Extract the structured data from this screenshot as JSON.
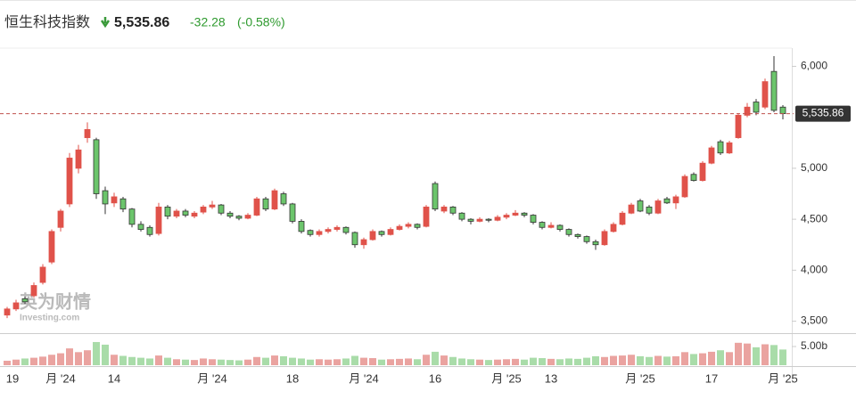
{
  "header": {
    "title": "恒生科技指数",
    "change": -32.28,
    "change_pct": "(-0.58%)"
  },
  "watermark": {
    "cn": "英为财情",
    "en": "Investing.com"
  },
  "chart_data": {
    "type": "candlestick",
    "up_color": "#e0524a",
    "down_color": "#6cc56c",
    "volume_up_color": "#eaa3a0",
    "volume_down_color": "#a9dca9",
    "last_price": {
      "value": 5535.86,
      "label": "5,535.86"
    },
    "last_price_color": "#c0504d",
    "ylim": [
      3400,
      6170
    ],
    "yticks": [
      {
        "value": 3500,
        "label": "3,500"
      },
      {
        "value": 4000,
        "label": "4,000"
      },
      {
        "value": 4500,
        "label": "4,500"
      },
      {
        "value": 5000,
        "label": "5,000"
      },
      {
        "value": 6000,
        "label": "6,000"
      }
    ],
    "volume_lim": [
      0,
      8.1
    ],
    "volume_ticks": [
      {
        "value": 5,
        "label": "5.00b"
      }
    ],
    "grid": false,
    "categories": [
      "19",
      null,
      null,
      null,
      null,
      null,
      "月 '24",
      null,
      null,
      null,
      null,
      null,
      "14",
      null,
      null,
      null,
      null,
      null,
      null,
      null,
      null,
      null,
      null,
      "月 '24",
      null,
      null,
      null,
      null,
      null,
      null,
      null,
      null,
      "18",
      null,
      null,
      null,
      null,
      null,
      null,
      null,
      "月 '24",
      null,
      null,
      null,
      null,
      null,
      null,
      null,
      "16",
      null,
      null,
      null,
      null,
      null,
      null,
      null,
      "月 '25",
      null,
      null,
      null,
      null,
      "13",
      null,
      null,
      null,
      null,
      null,
      null,
      null,
      null,
      null,
      "月 '25",
      null,
      null,
      null,
      null,
      null,
      null,
      null,
      "17",
      null,
      null,
      null,
      null,
      null,
      null,
      null,
      "月 '25"
    ],
    "candles": [
      [
        3560,
        3640,
        3530,
        3620
      ],
      [
        3620,
        3710,
        3600,
        3680
      ],
      [
        3720,
        3740,
        3670,
        3690
      ],
      [
        3750,
        3880,
        3730,
        3850
      ],
      [
        3880,
        4060,
        3860,
        4030
      ],
      [
        4080,
        4400,
        4060,
        4380
      ],
      [
        4420,
        4600,
        4380,
        4580
      ],
      [
        4650,
        5150,
        4620,
        5100
      ],
      [
        5000,
        5230,
        4950,
        5180
      ],
      [
        5300,
        5450,
        5250,
        5380
      ],
      [
        5280,
        5300,
        4700,
        4750
      ],
      [
        4780,
        4820,
        4550,
        4650
      ],
      [
        4660,
        4760,
        4620,
        4720
      ],
      [
        4700,
        4720,
        4570,
        4600
      ],
      [
        4600,
        4610,
        4420,
        4450
      ],
      [
        4450,
        4480,
        4380,
        4400
      ],
      [
        4420,
        4440,
        4330,
        4350
      ],
      [
        4360,
        4660,
        4340,
        4620
      ],
      [
        4620,
        4640,
        4500,
        4530
      ],
      [
        4530,
        4600,
        4510,
        4580
      ],
      [
        4580,
        4600,
        4520,
        4540
      ],
      [
        4530,
        4580,
        4510,
        4560
      ],
      [
        4570,
        4640,
        4550,
        4620
      ],
      [
        4620,
        4680,
        4600,
        4640
      ],
      [
        4640,
        4650,
        4540,
        4560
      ],
      [
        4560,
        4580,
        4510,
        4530
      ],
      [
        4530,
        4540,
        4490,
        4510
      ],
      [
        4510,
        4560,
        4500,
        4540
      ],
      [
        4540,
        4720,
        4530,
        4700
      ],
      [
        4700,
        4720,
        4580,
        4600
      ],
      [
        4600,
        4800,
        4590,
        4780
      ],
      [
        4750,
        4770,
        4630,
        4650
      ],
      [
        4650,
        4660,
        4460,
        4480
      ],
      [
        4480,
        4500,
        4360,
        4380
      ],
      [
        4390,
        4400,
        4330,
        4350
      ],
      [
        4350,
        4400,
        4330,
        4380
      ],
      [
        4380,
        4420,
        4360,
        4400
      ],
      [
        4400,
        4440,
        4380,
        4420
      ],
      [
        4420,
        4430,
        4350,
        4370
      ],
      [
        4370,
        4380,
        4220,
        4250
      ],
      [
        4250,
        4320,
        4210,
        4300
      ],
      [
        4300,
        4400,
        4290,
        4380
      ],
      [
        4380,
        4390,
        4330,
        4350
      ],
      [
        4350,
        4420,
        4340,
        4400
      ],
      [
        4400,
        4450,
        4390,
        4430
      ],
      [
        4430,
        4470,
        4410,
        4450
      ],
      [
        4450,
        4460,
        4400,
        4420
      ],
      [
        4430,
        4640,
        4420,
        4620
      ],
      [
        4850,
        4870,
        4580,
        4600
      ],
      [
        4580,
        4640,
        4560,
        4620
      ],
      [
        4620,
        4630,
        4540,
        4560
      ],
      [
        4560,
        4570,
        4480,
        4500
      ],
      [
        4500,
        4510,
        4450,
        4480
      ],
      [
        4480,
        4520,
        4470,
        4500
      ],
      [
        4500,
        4510,
        4470,
        4490
      ],
      [
        4490,
        4540,
        4480,
        4520
      ],
      [
        4520,
        4560,
        4500,
        4540
      ],
      [
        4540,
        4590,
        4530,
        4560
      ],
      [
        4560,
        4570,
        4520,
        4540
      ],
      [
        4540,
        4550,
        4450,
        4470
      ],
      [
        4470,
        4480,
        4400,
        4420
      ],
      [
        4420,
        4470,
        4410,
        4440
      ],
      [
        4440,
        4450,
        4380,
        4400
      ],
      [
        4400,
        4410,
        4330,
        4350
      ],
      [
        4350,
        4360,
        4310,
        4330
      ],
      [
        4330,
        4340,
        4260,
        4280
      ],
      [
        4280,
        4300,
        4200,
        4250
      ],
      [
        4250,
        4400,
        4240,
        4380
      ],
      [
        4380,
        4470,
        4370,
        4450
      ],
      [
        4450,
        4580,
        4440,
        4560
      ],
      [
        4560,
        4660,
        4550,
        4640
      ],
      [
        4680,
        4700,
        4570,
        4580
      ],
      [
        4620,
        4640,
        4540,
        4560
      ],
      [
        4560,
        4700,
        4550,
        4680
      ],
      [
        4700,
        4720,
        4650,
        4660
      ],
      [
        4660,
        4740,
        4600,
        4720
      ],
      [
        4720,
        4940,
        4710,
        4920
      ],
      [
        4940,
        4960,
        4870,
        4880
      ],
      [
        4880,
        5070,
        4870,
        5050
      ],
      [
        5050,
        5220,
        5040,
        5200
      ],
      [
        5260,
        5280,
        5130,
        5150
      ],
      [
        5150,
        5270,
        5140,
        5250
      ],
      [
        5300,
        5540,
        5290,
        5520
      ],
      [
        5520,
        5640,
        5500,
        5600
      ],
      [
        5650,
        5680,
        5520,
        5550
      ],
      [
        5600,
        5880,
        5580,
        5850
      ],
      [
        5950,
        6100,
        5550,
        5568.14
      ],
      [
        5600,
        5620,
        5480,
        5535.86
      ]
    ],
    "volumes": [
      1.2,
      1.5,
      1.8,
      2.0,
      2.3,
      2.8,
      3.2,
      4.5,
      3.5,
      4.0,
      6.2,
      5.5,
      2.8,
      2.5,
      2.2,
      2.0,
      1.8,
      2.6,
      2.0,
      1.6,
      1.5,
      1.4,
      1.8,
      1.6,
      1.5,
      1.4,
      1.3,
      1.5,
      2.2,
      2.0,
      2.6,
      2.4,
      2.0,
      1.8,
      1.5,
      1.6,
      1.5,
      1.6,
      1.8,
      2.5,
      2.0,
      1.9,
      1.5,
      1.6,
      1.7,
      1.8,
      1.6,
      2.8,
      3.6,
      2.6,
      2.2,
      1.8,
      1.6,
      1.5,
      1.4,
      1.5,
      1.6,
      1.7,
      1.5,
      2.0,
      1.9,
      1.7,
      1.6,
      1.8,
      1.7,
      2.0,
      2.4,
      2.2,
      2.5,
      2.6,
      2.8,
      2.4,
      2.2,
      2.5,
      2.3,
      2.4,
      3.5,
      3.0,
      3.2,
      3.6,
      4.0,
      3.5,
      6.0,
      5.8,
      4.8,
      5.6,
      5.4,
      4.2
    ]
  }
}
